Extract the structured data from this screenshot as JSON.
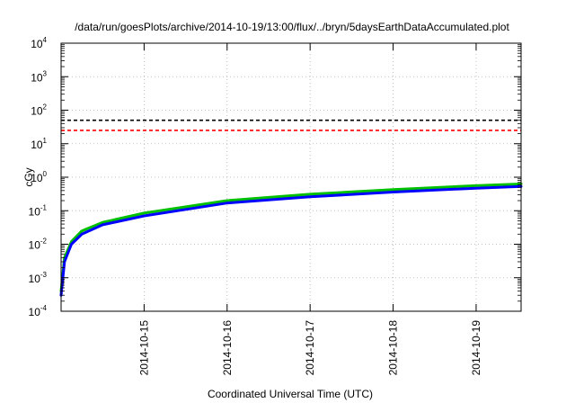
{
  "chart_data": {
    "type": "line",
    "title": "/data/run/goesPlots/archive/2014-10-19/13:00/flux/../bryn/5daysEarthDataAccumulated.plot",
    "xlabel": "Coordinated Universal Time (UTC)",
    "ylabel": "cGy",
    "y_scale": "log",
    "ylim": [
      0.0001,
      10000
    ],
    "xlim": [
      "2014-10-14T00:00",
      "2014-10-19T13:00"
    ],
    "grid": true,
    "legend": "none",
    "y_ticks": [
      {
        "base": "10",
        "exp": "-4",
        "value": 0.0001
      },
      {
        "base": "10",
        "exp": "-3",
        "value": 0.001
      },
      {
        "base": "10",
        "exp": "-2",
        "value": 0.01
      },
      {
        "base": "10",
        "exp": "-1",
        "value": 0.1
      },
      {
        "base": "10",
        "exp": "0",
        "value": 1
      },
      {
        "base": "10",
        "exp": "1",
        "value": 10
      },
      {
        "base": "10",
        "exp": "2",
        "value": 100
      },
      {
        "base": "10",
        "exp": "3",
        "value": 1000
      },
      {
        "base": "10",
        "exp": "4",
        "value": 10000
      }
    ],
    "x_ticks": [
      {
        "label": "2014-10-15",
        "value": "2014-10-15T00:00"
      },
      {
        "label": "2014-10-16",
        "value": "2014-10-16T00:00"
      },
      {
        "label": "2014-10-17",
        "value": "2014-10-17T00:00"
      },
      {
        "label": "2014-10-18",
        "value": "2014-10-18T00:00"
      },
      {
        "label": "2014-10-19",
        "value": "2014-10-19T00:00"
      }
    ],
    "reference_lines": [
      {
        "value": 50,
        "color": "#000000",
        "style": "dashed"
      },
      {
        "value": 25,
        "color": "#ff0000",
        "style": "dashed"
      }
    ],
    "series": [
      {
        "color": "#00c000",
        "points": [
          [
            "2014-10-14T00:00",
            0.0004
          ],
          [
            "2014-10-14T01:00",
            0.004
          ],
          [
            "2014-10-14T03:00",
            0.012
          ],
          [
            "2014-10-14T06:00",
            0.025
          ],
          [
            "2014-10-14T12:00",
            0.045
          ],
          [
            "2014-10-15T00:00",
            0.085
          ],
          [
            "2014-10-16T00:00",
            0.2
          ],
          [
            "2014-10-17T00:00",
            0.31
          ],
          [
            "2014-10-18T00:00",
            0.43
          ],
          [
            "2014-10-19T00:00",
            0.56
          ],
          [
            "2014-10-19T13:00",
            0.63
          ]
        ]
      },
      {
        "color": "#0000ff",
        "points": [
          [
            "2014-10-14T00:00",
            0.0003
          ],
          [
            "2014-10-14T01:00",
            0.003
          ],
          [
            "2014-10-14T03:00",
            0.01
          ],
          [
            "2014-10-14T06:00",
            0.02
          ],
          [
            "2014-10-14T12:00",
            0.038
          ],
          [
            "2014-10-15T00:00",
            0.07
          ],
          [
            "2014-10-16T00:00",
            0.17
          ],
          [
            "2014-10-17T00:00",
            0.26
          ],
          [
            "2014-10-18T00:00",
            0.36
          ],
          [
            "2014-10-19T00:00",
            0.47
          ],
          [
            "2014-10-19T13:00",
            0.53
          ]
        ]
      }
    ]
  }
}
